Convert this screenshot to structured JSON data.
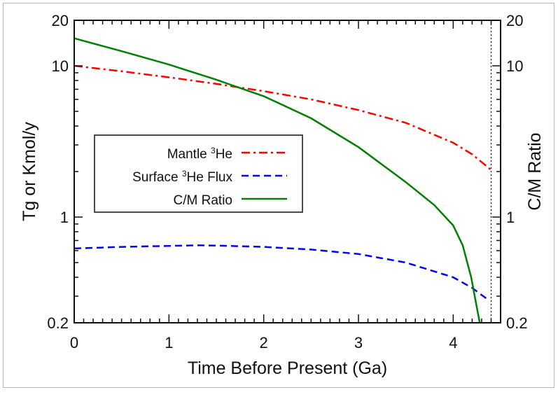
{
  "chart_data": {
    "type": "line",
    "xlabel": "Time Before Present (Ga)",
    "ylabel": "Tg or Kmol/y",
    "ylabel_right": "C/M Ratio",
    "xlim": [
      0,
      4.5
    ],
    "ylim": [
      0.2,
      20
    ],
    "yscale": "log",
    "xticks": [
      0,
      1,
      2,
      3,
      4
    ],
    "xtick_labels": [
      "0",
      "1",
      "2",
      "3",
      "4"
    ],
    "yticks": [
      0.2,
      1,
      10,
      20
    ],
    "ytick_labels": [
      "0.2",
      "1",
      "10",
      "20"
    ],
    "vline": {
      "x": 4.4,
      "style": "dotted",
      "color": "#000000"
    },
    "legend": {
      "placement": "center-left"
    },
    "series": [
      {
        "name": "Mantle ³He",
        "name_main": "Mantle ",
        "name_sup": "3",
        "name_rest": "He",
        "color": "#ff0000",
        "style": "dash-dot",
        "x": [
          0,
          0.5,
          1,
          1.5,
          2,
          2.5,
          3,
          3.5,
          4,
          4.2,
          4.4
        ],
        "y": [
          10,
          9.2,
          8.4,
          7.6,
          6.8,
          6.0,
          5.1,
          4.2,
          3.1,
          2.6,
          2.05
        ]
      },
      {
        "name": "Surface ³He Flux",
        "name_main": "Surface ",
        "name_sup": "3",
        "name_rest": "He Flux",
        "color": "#0000ff",
        "style": "dashed",
        "x": [
          0,
          0.5,
          1,
          1.3,
          1.5,
          2,
          2.5,
          3,
          3.5,
          4,
          4.2,
          4.38
        ],
        "y": [
          0.62,
          0.635,
          0.645,
          0.65,
          0.648,
          0.635,
          0.61,
          0.57,
          0.5,
          0.4,
          0.34,
          0.28
        ]
      },
      {
        "name": "C/M Ratio",
        "name_main": "C/M Ratio",
        "name_sup": "",
        "name_rest": "",
        "color": "#008000",
        "style": "solid",
        "x": [
          0,
          0.5,
          1,
          1.5,
          1.65,
          2,
          2.5,
          3,
          3.5,
          3.8,
          4,
          4.1,
          4.19,
          4.28
        ],
        "y": [
          15.2,
          12.5,
          10.2,
          8.1,
          7.5,
          6.3,
          4.5,
          2.9,
          1.7,
          1.2,
          0.88,
          0.65,
          0.4,
          0.2
        ]
      }
    ]
  }
}
